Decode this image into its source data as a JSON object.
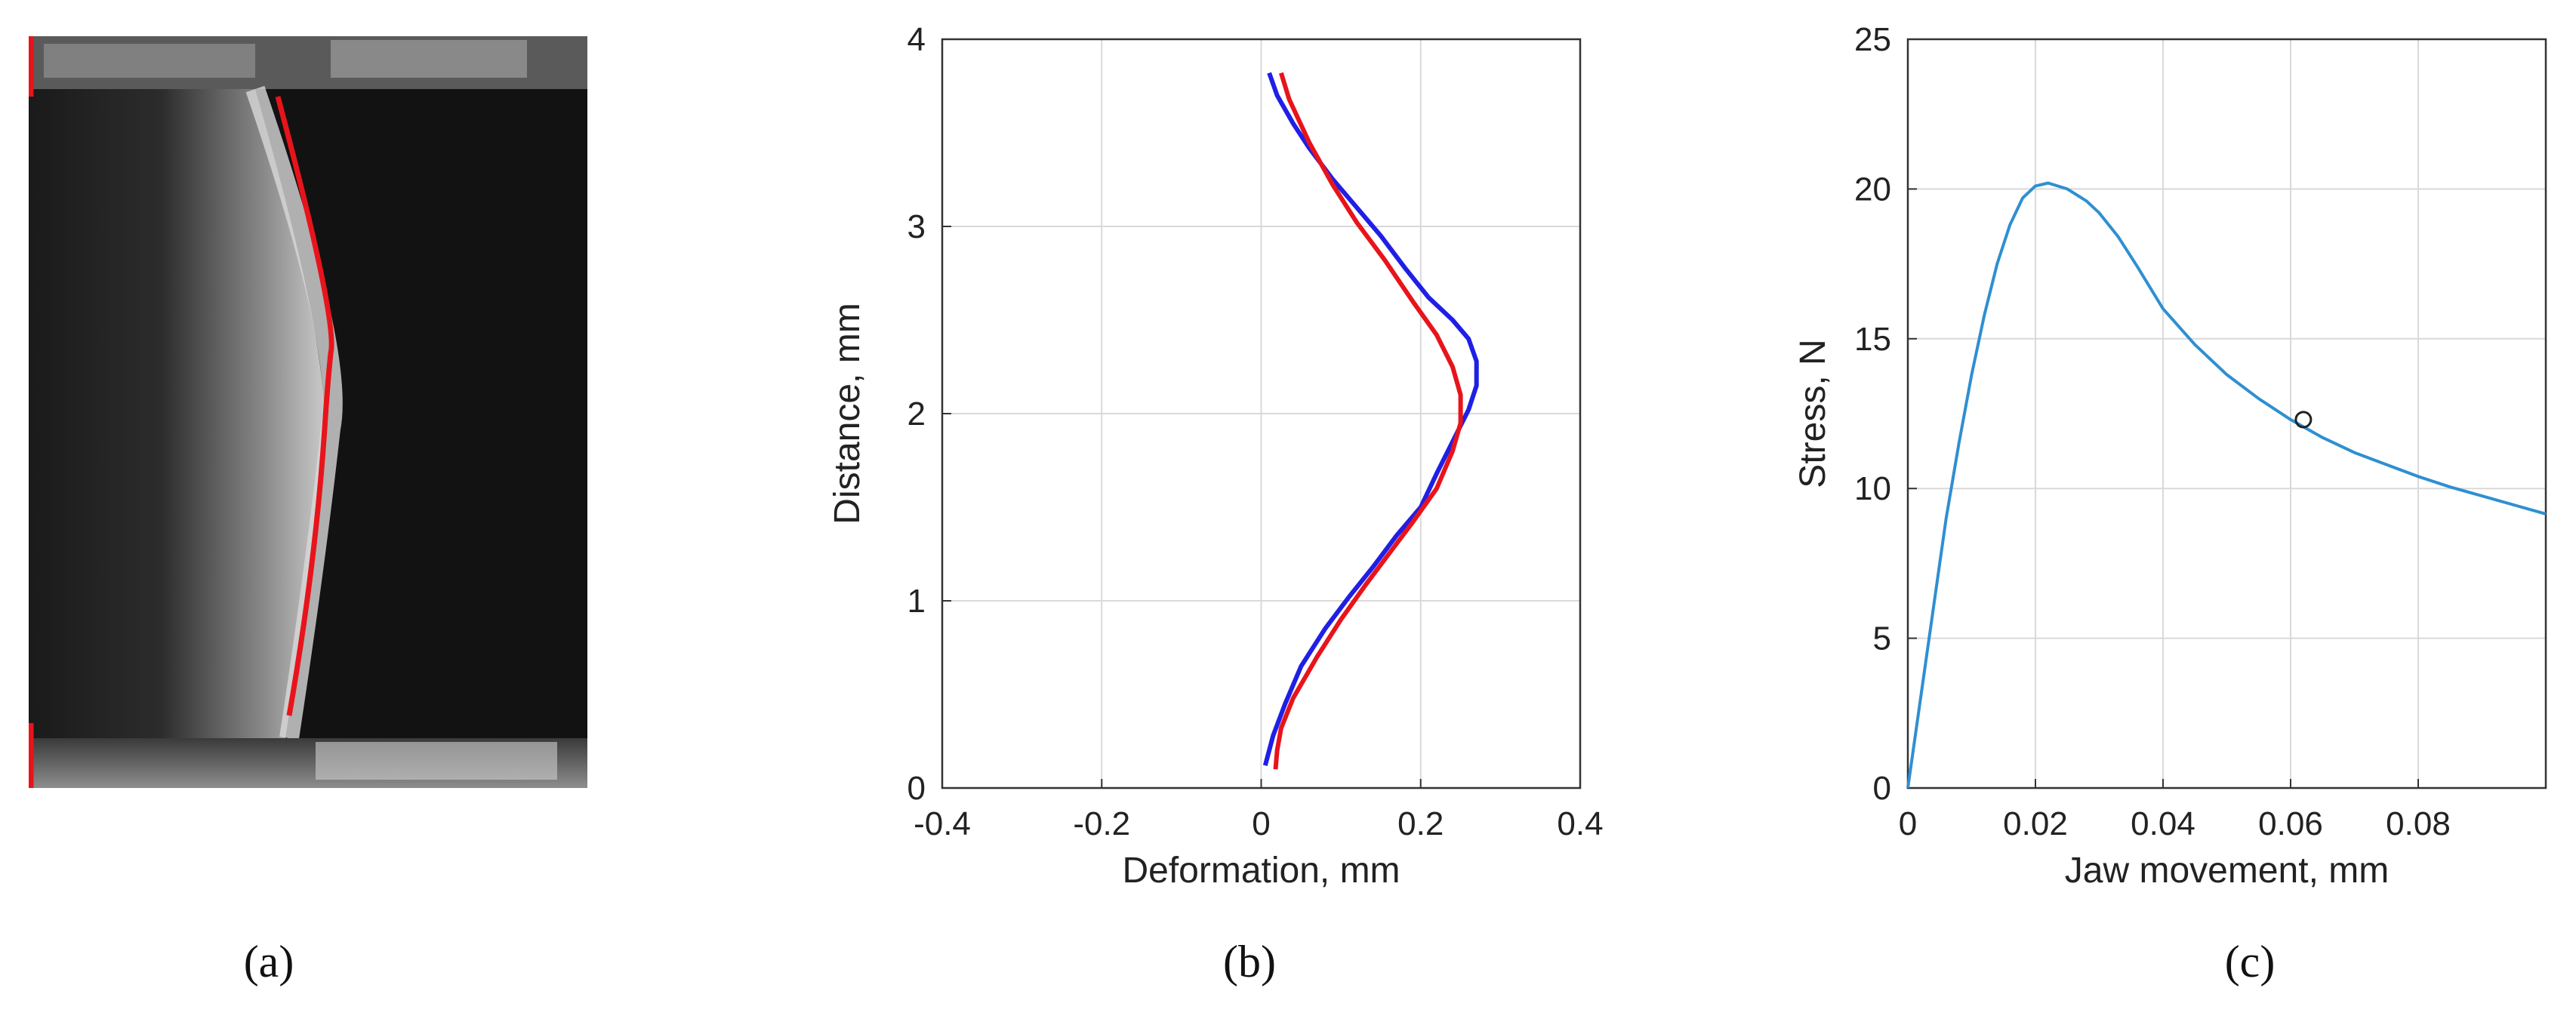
{
  "panels": {
    "a": {
      "label": "(a)"
    },
    "b": {
      "label": "(b)"
    },
    "c": {
      "label": "(c)"
    }
  },
  "colors": {
    "edge_trace": "#e8141b",
    "measured": "#1f1fe6",
    "fitted": "#e8141b",
    "stress_curve": "#2f8fd1",
    "grid": "#d9d9d9",
    "axis": "#333333"
  },
  "chart_data": [
    {
      "type": "line",
      "panel": "b",
      "xlabel": "Deformation, mm",
      "ylabel": "Distance, mm",
      "xlim": [
        -0.4,
        0.4
      ],
      "ylim": [
        0,
        4
      ],
      "xticks": [
        "-0.4",
        "-0.2",
        "0",
        "0.2",
        "0.4"
      ],
      "yticks": [
        "0",
        "1",
        "2",
        "3",
        "4"
      ],
      "grid": true,
      "series": [
        {
          "key": "measured",
          "x": [
            0.01,
            0.02,
            0.04,
            0.06,
            0.09,
            0.12,
            0.15,
            0.18,
            0.21,
            0.24,
            0.26,
            0.27,
            0.27,
            0.26,
            0.24,
            0.22,
            0.2,
            0.17,
            0.14,
            0.11,
            0.08,
            0.05,
            0.03,
            0.015,
            0.005
          ],
          "y": [
            3.82,
            3.7,
            3.55,
            3.42,
            3.25,
            3.1,
            2.95,
            2.78,
            2.62,
            2.5,
            2.4,
            2.28,
            2.15,
            2.02,
            1.85,
            1.68,
            1.5,
            1.35,
            1.18,
            1.02,
            0.85,
            0.65,
            0.45,
            0.28,
            0.12
          ]
        },
        {
          "key": "fitted",
          "x": [
            0.025,
            0.035,
            0.06,
            0.09,
            0.12,
            0.155,
            0.19,
            0.22,
            0.24,
            0.25,
            0.25,
            0.24,
            0.22,
            0.19,
            0.16,
            0.13,
            0.1,
            0.07,
            0.04,
            0.025,
            0.02,
            0.018
          ],
          "y": [
            3.82,
            3.68,
            3.45,
            3.22,
            3.02,
            2.82,
            2.6,
            2.42,
            2.25,
            2.1,
            1.95,
            1.8,
            1.6,
            1.42,
            1.25,
            1.08,
            0.9,
            0.7,
            0.48,
            0.32,
            0.2,
            0.1
          ]
        }
      ]
    },
    {
      "type": "line",
      "panel": "c",
      "xlabel": "Jaw movement, mm",
      "ylabel": "Stress, N",
      "xlim": [
        0,
        0.1
      ],
      "ylim": [
        0,
        25
      ],
      "xticks": [
        "0",
        "0.02",
        "0.04",
        "0.06",
        "0.08"
      ],
      "yticks": [
        "0",
        "5",
        "10",
        "15",
        "20",
        "25"
      ],
      "grid": true,
      "series": [
        {
          "key": "stress",
          "x": [
            0,
            0.002,
            0.004,
            0.006,
            0.008,
            0.01,
            0.012,
            0.014,
            0.016,
            0.018,
            0.02,
            0.022,
            0.025,
            0.028,
            0.03,
            0.033,
            0.036,
            0.04,
            0.045,
            0.05,
            0.055,
            0.06,
            0.065,
            0.07,
            0.075,
            0.08,
            0.085,
            0.09,
            0.095,
            0.1
          ],
          "y": [
            0,
            3,
            6,
            9,
            11.5,
            13.8,
            15.8,
            17.5,
            18.8,
            19.7,
            20.1,
            20.2,
            20.0,
            19.6,
            19.2,
            18.4,
            17.4,
            16.0,
            14.8,
            13.8,
            13.0,
            12.3,
            11.7,
            11.2,
            10.8,
            10.4,
            10.05,
            9.75,
            9.45,
            9.15
          ]
        }
      ],
      "markers": [
        {
          "x": 0.062,
          "y": 12.3
        }
      ]
    }
  ]
}
